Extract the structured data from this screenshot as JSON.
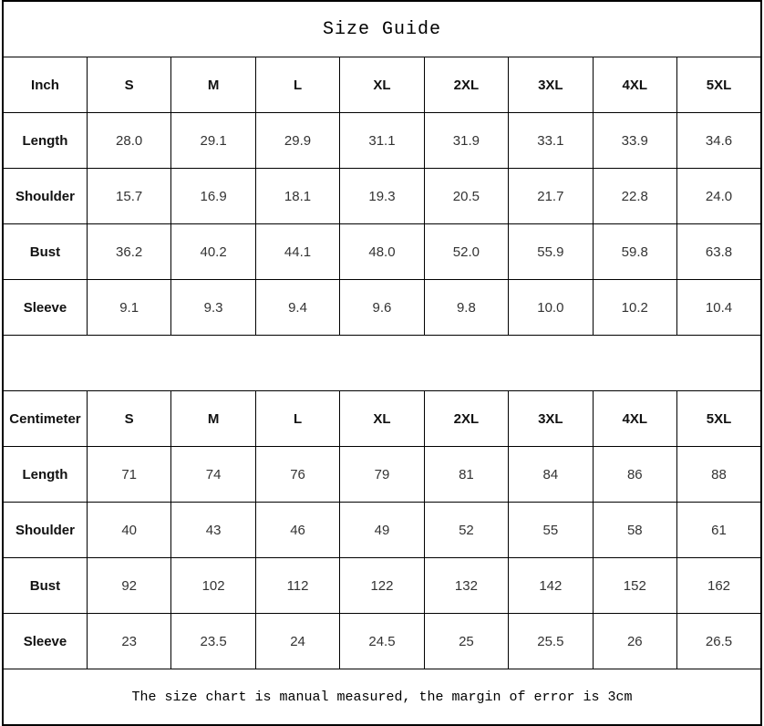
{
  "title": "Size Guide",
  "footer_note": "The size chart is manual measured, the margin of error is 3cm",
  "colors": {
    "border": "#000000",
    "header_text": "#111111",
    "value_text": "#333333",
    "background": "#ffffff"
  },
  "inch_table": {
    "unit_label": "Inch",
    "sizes": [
      "S",
      "M",
      "L",
      "XL",
      "2XL",
      "3XL",
      "4XL",
      "5XL"
    ],
    "rows": [
      {
        "label": "Length",
        "values": [
          "28.0",
          "29.1",
          "29.9",
          "31.1",
          "31.9",
          "33.1",
          "33.9",
          "34.6"
        ]
      },
      {
        "label": "Shoulder",
        "values": [
          "15.7",
          "16.9",
          "18.1",
          "19.3",
          "20.5",
          "21.7",
          "22.8",
          "24.0"
        ]
      },
      {
        "label": "Bust",
        "values": [
          "36.2",
          "40.2",
          "44.1",
          "48.0",
          "52.0",
          "55.9",
          "59.8",
          "63.8"
        ]
      },
      {
        "label": "Sleeve",
        "values": [
          "9.1",
          "9.3",
          "9.4",
          "9.6",
          "9.8",
          "10.0",
          "10.2",
          "10.4"
        ]
      }
    ]
  },
  "cm_table": {
    "unit_label": "Centimeter",
    "sizes": [
      "S",
      "M",
      "L",
      "XL",
      "2XL",
      "3XL",
      "4XL",
      "5XL"
    ],
    "rows": [
      {
        "label": "Length",
        "values": [
          "71",
          "74",
          "76",
          "79",
          "81",
          "84",
          "86",
          "88"
        ]
      },
      {
        "label": "Shoulder",
        "values": [
          "40",
          "43",
          "46",
          "49",
          "52",
          "55",
          "58",
          "61"
        ]
      },
      {
        "label": "Bust",
        "values": [
          "92",
          "102",
          "112",
          "122",
          "132",
          "142",
          "152",
          "162"
        ]
      },
      {
        "label": "Sleeve",
        "values": [
          "23",
          "23.5",
          "24",
          "24.5",
          "25",
          "25.5",
          "26",
          "26.5"
        ]
      }
    ]
  }
}
